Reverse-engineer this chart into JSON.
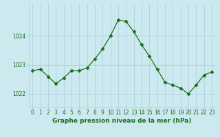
{
  "x": [
    0,
    1,
    2,
    3,
    4,
    5,
    6,
    7,
    8,
    9,
    10,
    11,
    12,
    13,
    14,
    15,
    16,
    17,
    18,
    19,
    20,
    21,
    22,
    23
  ],
  "y": [
    1022.8,
    1022.85,
    1022.6,
    1022.35,
    1022.55,
    1022.8,
    1022.8,
    1022.9,
    1023.2,
    1023.55,
    1024.0,
    1024.55,
    1024.5,
    1024.15,
    1023.7,
    1023.3,
    1022.85,
    1022.4,
    1022.3,
    1022.2,
    1022.0,
    1022.3,
    1022.65,
    1022.75
  ],
  "line_color": "#1a6e1a",
  "marker": "D",
  "marker_size": 2.5,
  "bg_color": "#cce9f0",
  "grid_color": "#aaccd8",
  "ylabel_ticks": [
    1022,
    1023,
    1024
  ],
  "xlabel": "Graphe pression niveau de la mer (hPa)",
  "xlabel_color": "#1a6e1a",
  "xlabel_fontsize": 6.5,
  "tick_label_color": "#1a6e1a",
  "tick_fontsize": 5.5,
  "ylim": [
    1021.55,
    1025.1
  ],
  "xlim": [
    -0.5,
    23.5
  ]
}
